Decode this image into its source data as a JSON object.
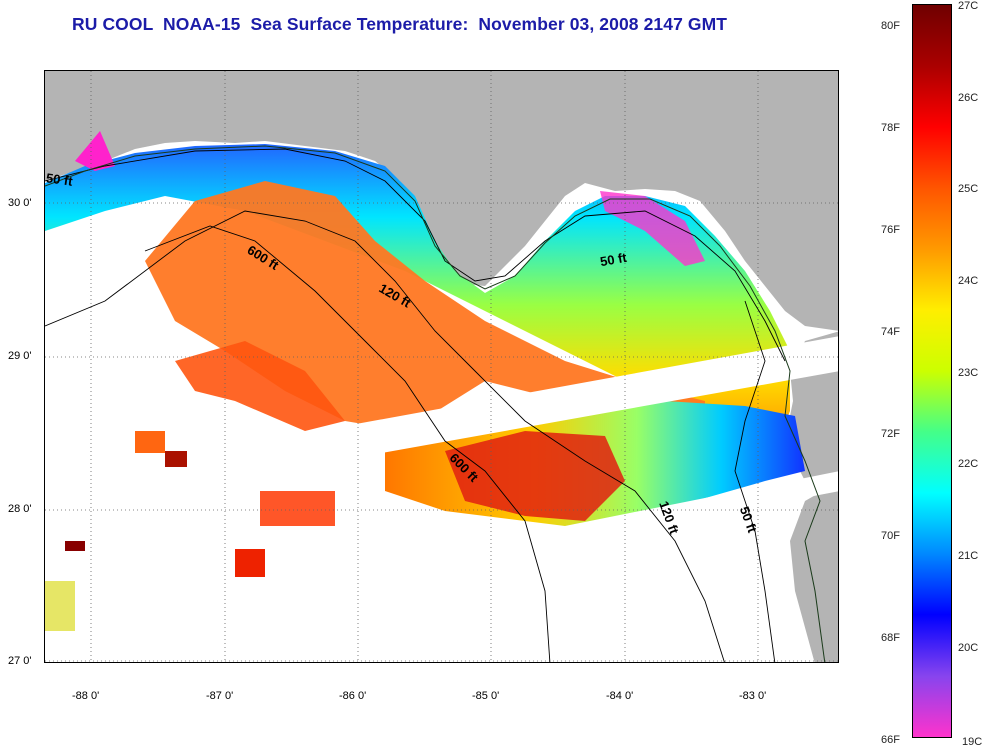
{
  "title": "RU COOL  NOAA-15  Sea Surface Temperature:  November 03, 2008 2147 GMT",
  "map": {
    "latitude_labels": [
      "30 0'",
      "29 0'",
      "28 0'",
      "27 0'"
    ],
    "longitude_labels": [
      "-88 0'",
      "-87 0'",
      "-86 0'",
      "-85 0'",
      "-84 0'",
      "-83 0'"
    ],
    "depth_contour_labels": [
      "50 ft",
      "600 ft",
      "120 ft",
      "50 ft",
      "600 ft",
      "120 ft",
      "50 ft"
    ],
    "colors": {
      "land": "#b4b4b4",
      "no_data": "#ffffff",
      "grid": "#606060"
    }
  },
  "colorbar": {
    "fahrenheit_labels": [
      "80F",
      "78F",
      "76F",
      "74F",
      "72F",
      "70F",
      "68F",
      "66F"
    ],
    "celsius_labels": [
      "27C",
      "26C",
      "25C",
      "24C",
      "23C",
      "22C",
      "21C",
      "20C",
      "19C"
    ],
    "min_celsius": 19,
    "max_celsius": 27,
    "gradient_colors": [
      "#ff33cc",
      "#8844ee",
      "#0000ff",
      "#0088ff",
      "#00ffff",
      "#44ff88",
      "#ccff00",
      "#ffee00",
      "#ff9900",
      "#ff5500",
      "#ff0000",
      "#aa0000",
      "#700000"
    ]
  }
}
